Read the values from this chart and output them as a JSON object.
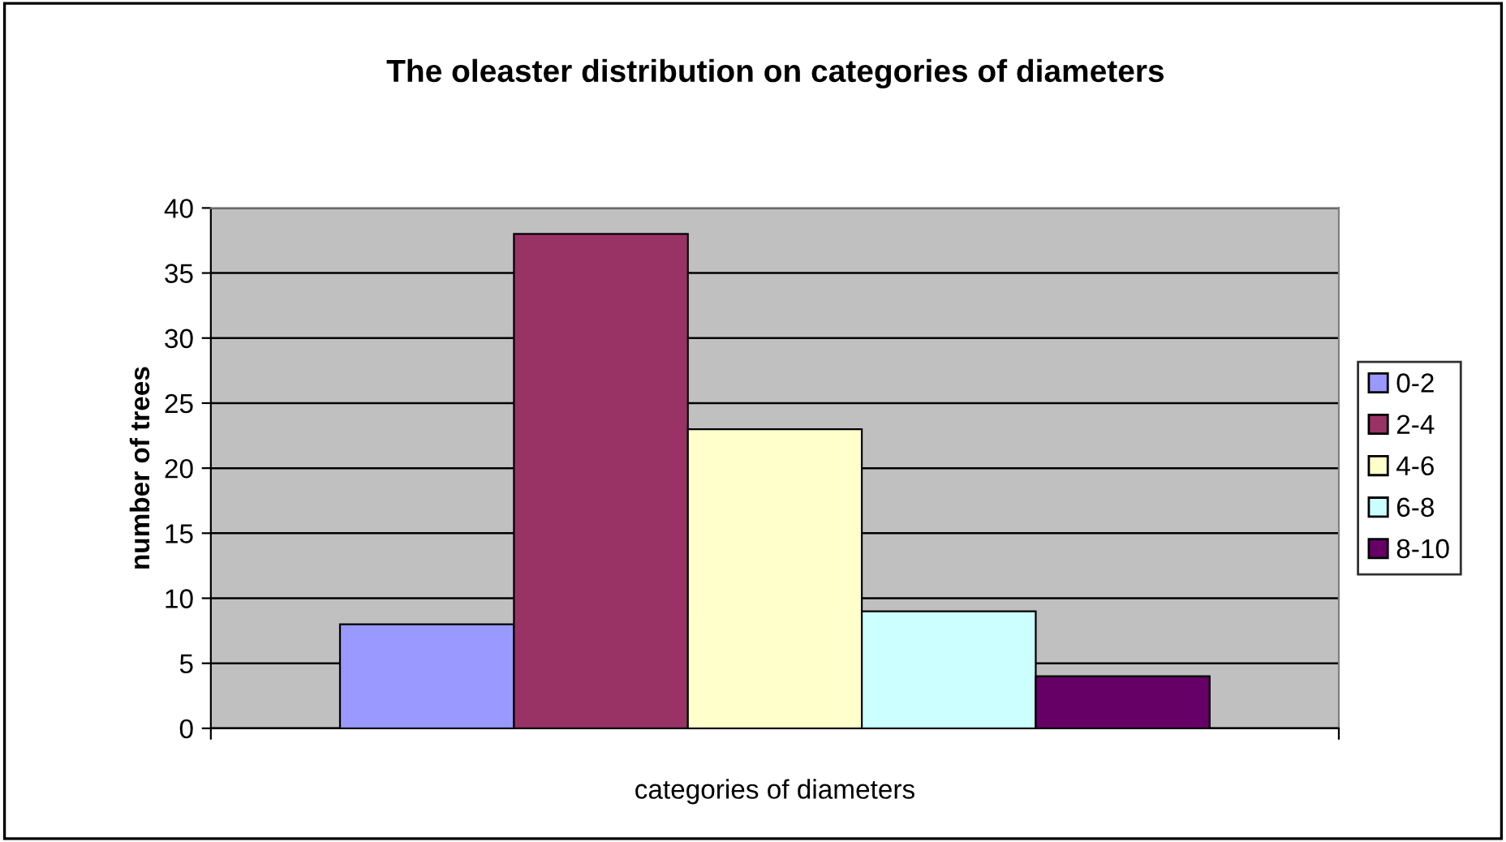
{
  "chart_data": {
    "type": "bar",
    "title": "The oleaster distribution on categories of diameters",
    "xlabel": "categories of diameters",
    "ylabel": "number of trees",
    "categories": [
      null
    ],
    "series": [
      {
        "name": "0-2",
        "color": "#9999ff",
        "values": [
          8
        ]
      },
      {
        "name": "2-4",
        "color": "#993366",
        "values": [
          38
        ]
      },
      {
        "name": "4-6",
        "color": "#ffffcc",
        "values": [
          23
        ]
      },
      {
        "name": "6-8",
        "color": "#ccffff",
        "values": [
          9
        ]
      },
      {
        "name": "8-10",
        "color": "#660066",
        "values": [
          4
        ]
      }
    ],
    "ylim": [
      0,
      40
    ],
    "yticks": [
      0,
      5,
      10,
      15,
      20,
      25,
      30,
      35,
      40
    ],
    "grid": "y",
    "legend": "right"
  }
}
